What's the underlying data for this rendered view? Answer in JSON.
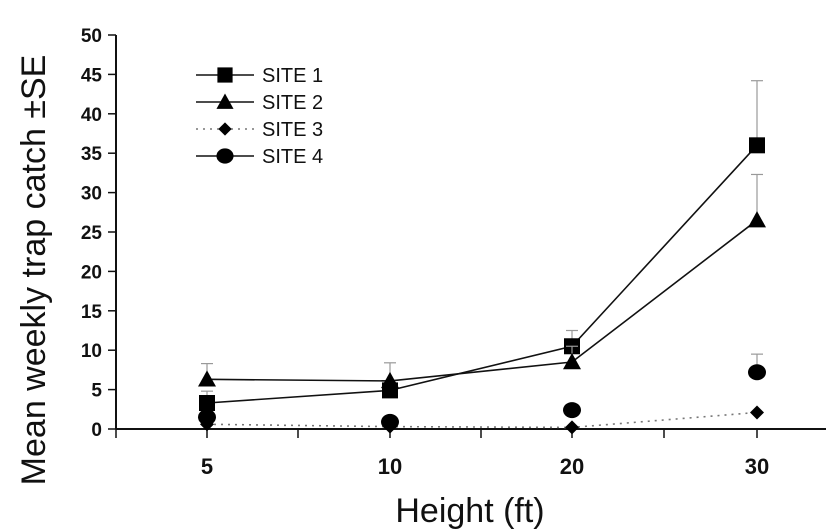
{
  "chart_data": {
    "type": "line",
    "xlabel": "Height (ft)",
    "ylabel": "Mean weekly trap catch ±SE",
    "categories": [
      "5",
      "10",
      "20",
      "30"
    ],
    "ylim": [
      0,
      50
    ],
    "yticks": [
      0,
      5,
      10,
      15,
      20,
      25,
      30,
      35,
      40,
      45,
      50
    ],
    "grid": false,
    "legend_position": "top-left",
    "series": [
      {
        "name": "SITE 1",
        "marker": "square",
        "line": "solid",
        "connected": true,
        "values": [
          3.3,
          4.9,
          10.5,
          36.0
        ],
        "se": [
          1.5,
          1.0,
          2.0,
          8.2
        ]
      },
      {
        "name": "SITE 2",
        "marker": "triangle",
        "line": "solid",
        "connected": true,
        "values": [
          6.3,
          6.1,
          8.5,
          26.5
        ],
        "se": [
          2.0,
          2.3,
          2.0,
          5.8
        ]
      },
      {
        "name": "SITE 3",
        "marker": "diamond",
        "line": "dotted",
        "connected": true,
        "values": [
          0.6,
          0.3,
          0.2,
          2.1
        ],
        "se": [
          0.3,
          0.2,
          0.1,
          0.5
        ]
      },
      {
        "name": "SITE 4",
        "marker": "circle",
        "line": "none",
        "connected": false,
        "values": [
          1.5,
          0.9,
          2.4,
          7.2
        ],
        "se": [
          0.6,
          0.5,
          0.7,
          2.3
        ]
      }
    ]
  }
}
